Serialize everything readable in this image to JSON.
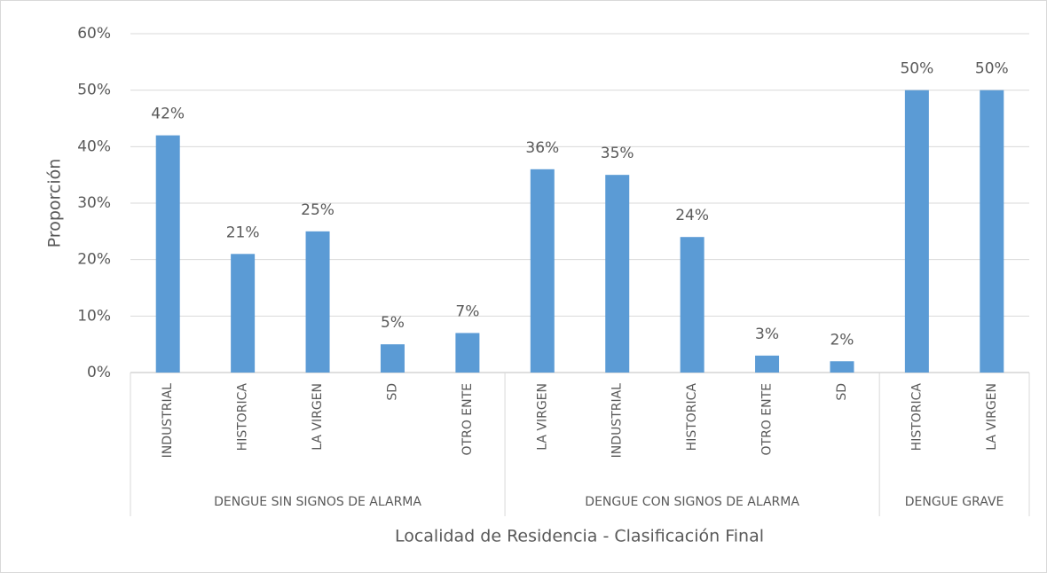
{
  "chart_data": {
    "type": "bar",
    "y_label": "Proporción",
    "x_label": "Localidad de Residencia - Clasificación Final",
    "color": "#5b9bd5",
    "grid": true,
    "ylim": [
      0,
      60
    ],
    "yticks": [
      {
        "value": 0,
        "label": "0%"
      },
      {
        "value": 10,
        "label": "10%"
      },
      {
        "value": 20,
        "label": "20%"
      },
      {
        "value": 30,
        "label": "30%"
      },
      {
        "value": 40,
        "label": "40%"
      },
      {
        "value": 50,
        "label": "50%"
      },
      {
        "value": 60,
        "label": "60%"
      }
    ],
    "groups": [
      {
        "name": "DENGUE SIN SIGNOS DE ALARMA",
        "categories": [
          "INDUSTRIAL",
          "HISTORICA",
          "LA VIRGEN",
          "SD",
          "OTRO ENTE"
        ],
        "values": [
          42,
          21,
          25,
          5,
          7
        ],
        "value_labels": [
          "42%",
          "21%",
          "25%",
          "5%",
          "7%"
        ]
      },
      {
        "name": "DENGUE CON SIGNOS DE ALARMA",
        "categories": [
          "LA VIRGEN",
          "INDUSTRIAL",
          "HISTORICA",
          "OTRO ENTE",
          "SD"
        ],
        "values": [
          36,
          35,
          24,
          3,
          2
        ],
        "value_labels": [
          "36%",
          "35%",
          "24%",
          "3%",
          "2%"
        ]
      },
      {
        "name": "DENGUE GRAVE",
        "categories": [
          "HISTORICA",
          "LA VIRGEN"
        ],
        "values": [
          50,
          50
        ],
        "value_labels": [
          "50%",
          "50%"
        ]
      }
    ]
  }
}
